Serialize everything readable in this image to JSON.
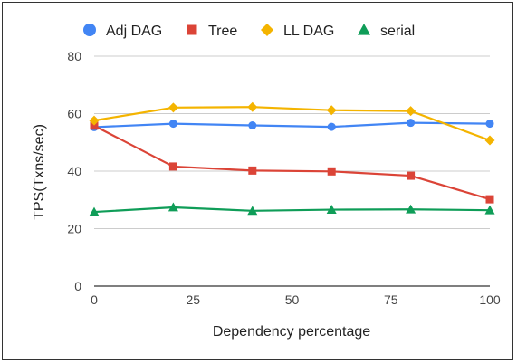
{
  "chart_data": {
    "type": "line",
    "title": "",
    "xlabel": "Dependency percentage",
    "ylabel": "TPS(Txns/sec)",
    "x": [
      0,
      20,
      40,
      60,
      80,
      100
    ],
    "xlim": [
      0,
      100
    ],
    "ylim": [
      0,
      80
    ],
    "xticks": [
      0,
      25,
      50,
      75,
      100
    ],
    "yticks": [
      0,
      20,
      40,
      60,
      80
    ],
    "grid": "horizontal",
    "legend_position": "top",
    "series": [
      {
        "name": "Adj DAG",
        "color": "#4285F4",
        "marker": "circle",
        "values": [
          55.3,
          56.5,
          55.9,
          55.4,
          56.8,
          56.5
        ]
      },
      {
        "name": "Tree",
        "color": "#DB4437",
        "marker": "square",
        "values": [
          55.8,
          41.6,
          40.2,
          39.9,
          38.4,
          30.2
        ]
      },
      {
        "name": "LL DAG",
        "color": "#F4B400",
        "marker": "diamond",
        "values": [
          57.6,
          62.1,
          62.3,
          61.2,
          60.9,
          50.7
        ]
      },
      {
        "name": "serial",
        "color": "#0F9D58",
        "marker": "triangle",
        "values": [
          25.8,
          27.4,
          26.2,
          26.6,
          26.7,
          26.4
        ]
      }
    ]
  }
}
